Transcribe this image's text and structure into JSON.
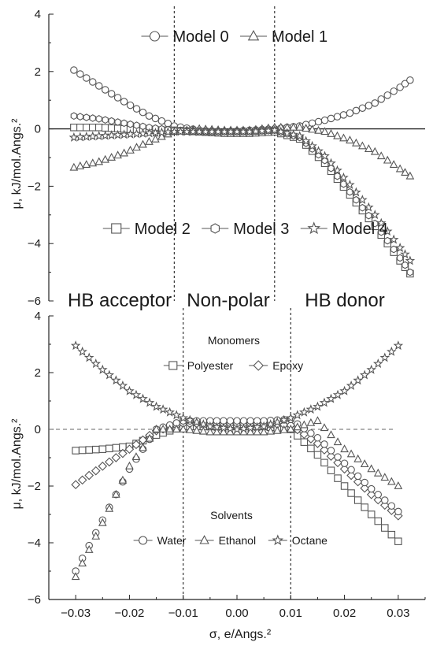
{
  "region_labels": [
    "HB acceptor",
    "Non-polar",
    "HB donor"
  ],
  "chart_data": [
    {
      "type": "scatter",
      "xlabel": "",
      "ylabel": "μ, kJ/mol.Angs.²",
      "xlim": [
        -0.035,
        0.04
      ],
      "ylim": [
        -6,
        4
      ],
      "yticks": [
        "4",
        "2",
        "0",
        "-2",
        "-4",
        "-6"
      ],
      "reference_lines": {
        "x": [
          -0.01,
          0.01
        ],
        "y": [
          0
        ]
      },
      "legend_groups": [
        {
          "label": "",
          "placement": "top-center",
          "series": [
            "Model 0",
            "Model 1"
          ]
        },
        {
          "label": "",
          "placement": "lower-center",
          "series": [
            "Model 2",
            "Model 3",
            "Model 4"
          ]
        }
      ],
      "series": [
        {
          "name": "Model 0",
          "marker": "circle",
          "x": [
            -0.03,
            -0.025,
            -0.02,
            -0.015,
            -0.01,
            -0.005,
            0.0,
            0.005,
            0.01,
            0.015,
            0.02,
            0.025,
            0.03,
            0.035,
            0.037
          ],
          "y": [
            2.05,
            1.5,
            0.95,
            0.45,
            0.1,
            -0.05,
            -0.1,
            -0.05,
            0.0,
            0.1,
            0.3,
            0.55,
            0.9,
            1.45,
            1.7
          ]
        },
        {
          "name": "Model 1",
          "marker": "triangle",
          "x": [
            -0.03,
            -0.025,
            -0.02,
            -0.015,
            -0.01,
            -0.005,
            0.0,
            0.005,
            0.01,
            0.015,
            0.02,
            0.025,
            0.03,
            0.035,
            0.037
          ],
          "y": [
            -1.35,
            -1.15,
            -0.85,
            -0.45,
            -0.1,
            0.0,
            -0.05,
            -0.05,
            0.05,
            0.05,
            -0.1,
            -0.4,
            -0.8,
            -1.4,
            -1.65
          ]
        },
        {
          "name": "Model 2",
          "marker": "square",
          "x": [
            -0.03,
            -0.025,
            -0.02,
            -0.015,
            -0.01,
            -0.005,
            0.0,
            0.005,
            0.01,
            0.015,
            0.02,
            0.025,
            0.03,
            0.035,
            0.037
          ],
          "y": [
            0.05,
            0.05,
            0.0,
            -0.05,
            -0.05,
            -0.1,
            -0.15,
            -0.15,
            -0.1,
            -0.35,
            -1.2,
            -2.3,
            -3.4,
            -4.6,
            -5.05
          ]
        },
        {
          "name": "Model 3",
          "marker": "hexagon",
          "x": [
            -0.03,
            -0.025,
            -0.02,
            -0.015,
            -0.01,
            -0.005,
            0.0,
            0.005,
            0.01,
            0.015,
            0.02,
            0.025,
            0.03,
            0.035,
            0.037
          ],
          "y": [
            0.45,
            0.35,
            0.2,
            0.05,
            -0.05,
            -0.1,
            -0.1,
            -0.1,
            -0.05,
            -0.3,
            -1.1,
            -2.2,
            -3.3,
            -4.5,
            -5.0
          ]
        },
        {
          "name": "Model 4",
          "marker": "star",
          "x": [
            -0.03,
            -0.025,
            -0.02,
            -0.015,
            -0.01,
            -0.005,
            0.0,
            0.005,
            0.01,
            0.015,
            0.02,
            0.025,
            0.03,
            0.035,
            0.037
          ],
          "y": [
            -0.3,
            -0.25,
            -0.2,
            -0.15,
            -0.1,
            -0.1,
            -0.1,
            -0.1,
            -0.05,
            -0.25,
            -0.95,
            -1.95,
            -3.0,
            -4.15,
            -4.6
          ]
        }
      ]
    },
    {
      "type": "scatter",
      "xlabel": "σ, e/Angs.²",
      "ylabel": "μ, kJ/mol.Angs.²",
      "xlim": [
        -0.035,
        0.035
      ],
      "ylim": [
        -6,
        4
      ],
      "xticks": [
        "-0.03",
        "-0.02",
        "-0.01",
        "0.00",
        "0.01",
        "0.02",
        "0.03"
      ],
      "yticks": [
        "4",
        "2",
        "0",
        "-2",
        "-4",
        "-6"
      ],
      "reference_lines": {
        "x": [
          -0.01,
          0.01
        ],
        "y": [
          0
        ]
      },
      "legend_groups": [
        {
          "label": "Monomers",
          "placement": "top-center",
          "series": [
            "Polyester",
            "Epoxy"
          ]
        },
        {
          "label": "Solvents",
          "placement": "lower-center",
          "series": [
            "Water",
            "Ethanol",
            "Octane"
          ]
        }
      ],
      "series": [
        {
          "name": "Polyester",
          "marker": "square",
          "x": [
            -0.03,
            -0.025,
            -0.02,
            -0.015,
            -0.01,
            -0.005,
            0.0,
            0.005,
            0.01,
            0.015,
            0.02,
            0.025,
            0.03
          ],
          "y": [
            -0.75,
            -0.7,
            -0.6,
            -0.2,
            0.1,
            0.1,
            0.1,
            0.1,
            0.0,
            -0.9,
            -2.0,
            -3.0,
            -3.95
          ]
        },
        {
          "name": "Epoxy",
          "marker": "diamond",
          "x": [
            -0.03,
            -0.025,
            -0.02,
            -0.015,
            -0.01,
            -0.005,
            0.0,
            0.005,
            0.01,
            0.015,
            0.02,
            0.025,
            0.03
          ],
          "y": [
            -1.95,
            -1.3,
            -0.7,
            -0.05,
            0.2,
            0.2,
            0.2,
            0.2,
            0.15,
            -0.5,
            -1.4,
            -2.3,
            -3.05
          ]
        },
        {
          "name": "Water",
          "marker": "circle",
          "x": [
            -0.03,
            -0.025,
            -0.02,
            -0.015,
            -0.01,
            -0.005,
            0.0,
            0.005,
            0.01,
            0.015,
            0.02,
            0.025,
            0.03
          ],
          "y": [
            -5.0,
            -3.2,
            -1.4,
            0.0,
            0.3,
            0.3,
            0.3,
            0.3,
            0.35,
            -0.3,
            -1.2,
            -2.1,
            -2.9
          ]
        },
        {
          "name": "Ethanol",
          "marker": "triangle",
          "x": [
            -0.03,
            -0.025,
            -0.02,
            -0.015,
            -0.01,
            -0.005,
            0.0,
            0.005,
            0.01,
            0.015,
            0.02,
            0.025,
            0.03
          ],
          "y": [
            -5.2,
            -3.3,
            -1.3,
            0.0,
            0.0,
            -0.1,
            -0.1,
            -0.1,
            0.0,
            0.3,
            -0.7,
            -1.4,
            -2.0
          ]
        },
        {
          "name": "Octane",
          "marker": "star",
          "x": [
            -0.03,
            -0.025,
            -0.02,
            -0.015,
            -0.01,
            -0.005,
            0.0,
            0.005,
            0.01,
            0.015,
            0.02,
            0.025,
            0.03
          ],
          "y": [
            2.95,
            2.1,
            1.35,
            0.8,
            0.4,
            0.1,
            0.0,
            0.1,
            0.4,
            0.8,
            1.35,
            2.1,
            2.95
          ]
        }
      ]
    }
  ]
}
